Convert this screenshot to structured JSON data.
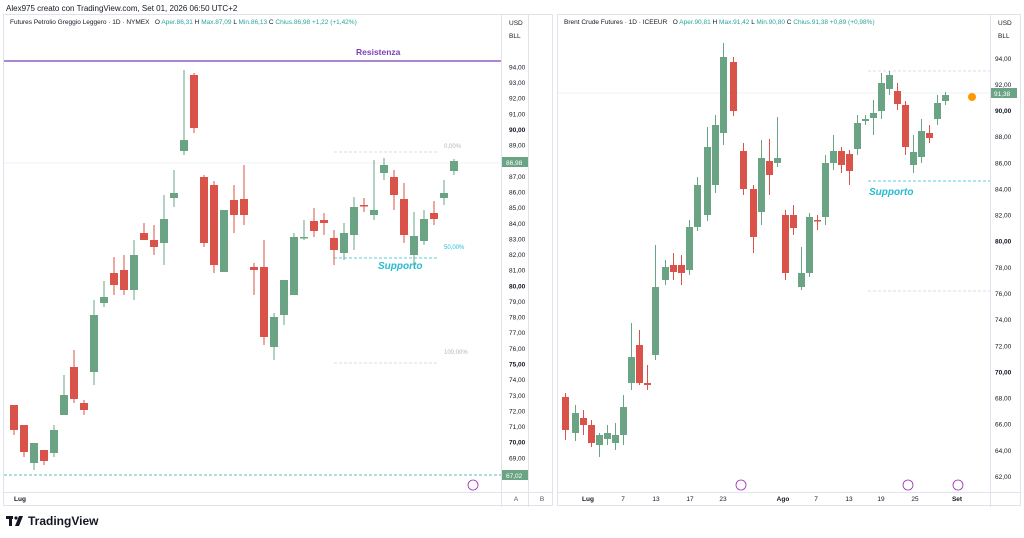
{
  "header": {
    "text": "Alex975 creato con TradingView.com, Set 01, 2026 06:50 UTC+2"
  },
  "footer": {
    "brand": "TradingView"
  },
  "left_chart": {
    "legend": {
      "name": "Futures Petrolio Greggio Leggero · 1D · NYMEX",
      "o_label": "O",
      "o": "Aper.86,31",
      "h_label": "H",
      "h": "Max.87,09",
      "l_label": "L",
      "l": "Min.86,13",
      "c_label": "C",
      "c": "Chius.86,98",
      "chg": "+1,22 (+1,42%)"
    },
    "currency": "USD",
    "unit": "BLL",
    "price_ticks": [
      "94,00",
      "93,00",
      "92,00",
      "91,00",
      "90,00",
      "89,00",
      "88,00",
      "87,00",
      "86,00",
      "85,00",
      "84,00",
      "83,00",
      "82,00",
      "81,00",
      "80,00",
      "79,00",
      "78,00",
      "77,00",
      "76,00",
      "75,00",
      "74,00",
      "73,00",
      "72,00",
      "71,00",
      "70,00",
      "69,00",
      "68,00"
    ],
    "bold_ticks": [
      "90,00",
      "80,00",
      "75,00",
      "70,00"
    ],
    "last_price_label": "86,98",
    "low_price_label": "67,02",
    "x_labels": [
      {
        "text": "Lug",
        "bold": true
      }
    ],
    "resistance_label": "Resistenza",
    "support_label": "Supporto",
    "fib_labels": [
      "0,00%",
      "50,00%",
      "100,00%"
    ],
    "buttons": [
      "A",
      "B"
    ],
    "accent_up": "#6aa484",
    "accent_down": "#d9534a",
    "resistance_color": "#7b3fb5",
    "support_color": "#26bcd0"
  },
  "right_chart": {
    "legend": {
      "name": "Brent Crude Futures · 1D · ICEEUR",
      "o_label": "O",
      "o": "Aper.90,81",
      "h_label": "H",
      "h": "Max.91,42",
      "l_label": "L",
      "l": "Min.90,80",
      "c_label": "C",
      "c": "Chius.91,38",
      "chg": "+0,89 (+0,98%)"
    },
    "currency": "USD",
    "unit": "BLL",
    "price_ticks": [
      "94,00",
      "92,00",
      "90,00",
      "88,00",
      "86,00",
      "84,00",
      "82,00",
      "80,00",
      "78,00",
      "76,00",
      "74,00",
      "72,00",
      "70,00",
      "68,00",
      "66,00",
      "64,00",
      "62,00"
    ],
    "bold_ticks": [
      "90,00",
      "80,00",
      "70,00"
    ],
    "last_price_label": "91,38",
    "x_labels": [
      {
        "text": "Lug",
        "bold": true
      },
      {
        "text": "7",
        "bold": false
      },
      {
        "text": "13",
        "bold": false
      },
      {
        "text": "17",
        "bold": false
      },
      {
        "text": "23",
        "bold": false
      },
      {
        "text": "Ago",
        "bold": true
      },
      {
        "text": "7",
        "bold": false
      },
      {
        "text": "13",
        "bold": false
      },
      {
        "text": "19",
        "bold": false
      },
      {
        "text": "25",
        "bold": false
      },
      {
        "text": "Set",
        "bold": true
      }
    ],
    "support_label": "Supporto"
  }
}
